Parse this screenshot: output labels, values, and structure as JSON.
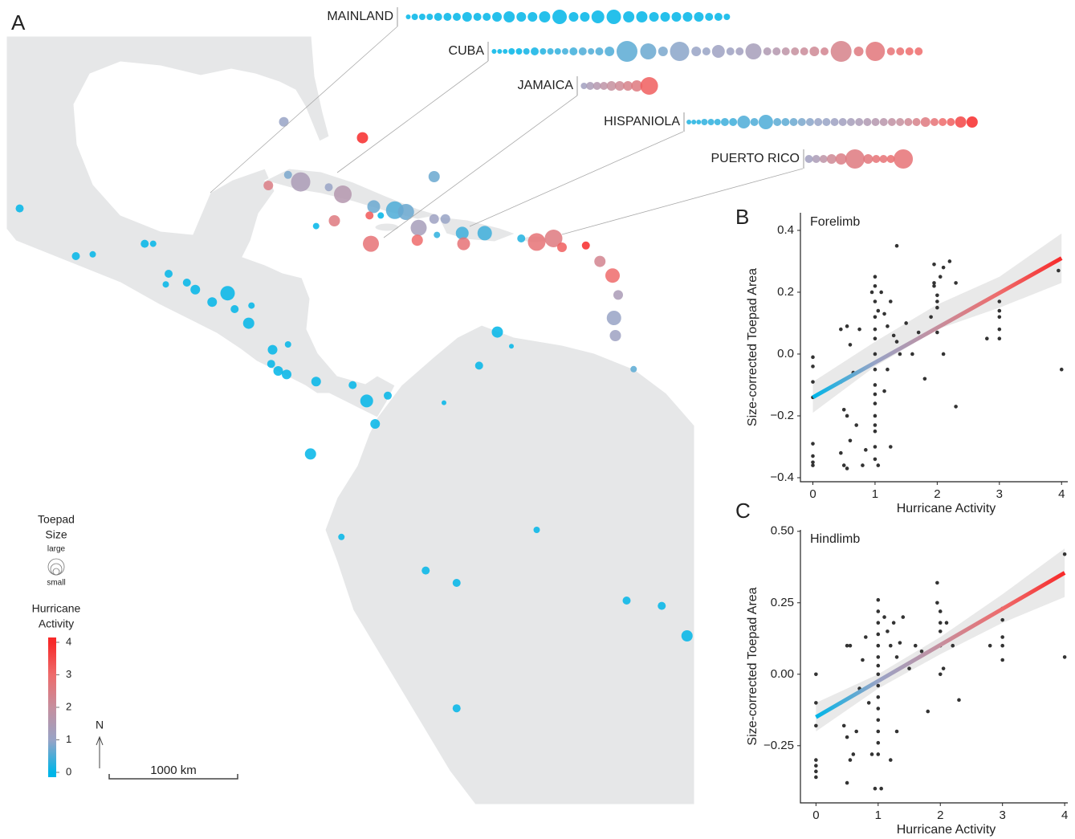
{
  "chart_data": [
    {
      "type": "map",
      "panel": "A",
      "lon": [
        -105.0,
        -101.0,
        -99.8,
        -96.1,
        -95.5,
        -94.4,
        -94.6,
        -93.1,
        -92.5,
        -91.3,
        -90.2,
        -89.7,
        -88.7,
        -88.5,
        -87.0,
        -85.9,
        -87.1,
        -86.6,
        -86.0,
        -83.9,
        -81.3,
        -80.3,
        -78.8,
        -79.7,
        -84.3,
        -74.8,
        -72.3,
        -71.0,
        -70.0,
        -82.1,
        -76.1,
        -73.9,
        -68.2,
        -61.8,
        -59.3,
        -57.5,
        -73.9,
        -83.9,
        -79.3,
        -75.3,
        -61.3,
        -86.2,
        -80.6,
        -87.3,
        -85.0,
        -85.9,
        -82.0,
        -83.0,
        -82.6,
        -80.0,
        -79.8,
        -78.3,
        -77.5,
        -76.6,
        -75.5,
        -75.5,
        -74.7,
        -73.5,
        -71.9,
        -73.4,
        -76.7,
        -69.3,
        -68.2,
        -67.0,
        -66.4,
        -64.7,
        -63.7,
        -62.8,
        -62.4,
        -62.7,
        -62.6,
        -80.1
      ],
      "lat": [
        17.7,
        15.0,
        15.1,
        15.7,
        15.7,
        14.0,
        13.4,
        13.5,
        13.1,
        12.4,
        12.9,
        12.0,
        11.2,
        12.2,
        9.7,
        10.0,
        8.9,
        8.5,
        8.3,
        7.9,
        7.7,
        6.8,
        7.1,
        5.5,
        3.8,
        6.7,
        8.8,
        10.7,
        9.9,
        -0.9,
        -2.8,
        -3.5,
        -0.5,
        -4.5,
        -4.8,
        -6.5,
        -10.6,
        16.7,
        17.3,
        16.2,
        8.6,
        22.6,
        21.7,
        19.0,
        19.2,
        19.6,
        18.5,
        18.9,
        17.0,
        15.7,
        17.8,
        17.6,
        17.5,
        16.6,
        19.5,
        17.1,
        17.1,
        16.3,
        16.3,
        15.7,
        15.9,
        16.0,
        15.8,
        16.0,
        15.5,
        15.6,
        14.7,
        13.9,
        12.8,
        11.5,
        10.5,
        17.3
      ],
      "activity": [
        0,
        0,
        0,
        0,
        0,
        0,
        0,
        0,
        0,
        0,
        0,
        0,
        0,
        0,
        0,
        0,
        0,
        0,
        0,
        0,
        0,
        0,
        0,
        0,
        0,
        0,
        0,
        0,
        0,
        0,
        0,
        0,
        0,
        0,
        0,
        0,
        0,
        0,
        0,
        0.3,
        0.6,
        1.0,
        4.0,
        2.5,
        1.4,
        0.8,
        1.6,
        1.0,
        2.6,
        2.8,
        0.7,
        0.5,
        0.7,
        1.3,
        0.7,
        1.1,
        1.0,
        0.4,
        0.4,
        2.8,
        3.0,
        0.2,
        2.8,
        2.6,
        3.2,
        4.0,
        2.3,
        3.0,
        1.4,
        1.0,
        1.1,
        3.3
      ],
      "toepad": [
        5,
        5,
        4,
        5,
        4,
        5,
        4,
        5,
        6,
        6,
        9,
        5,
        7,
        4,
        6,
        4,
        5,
        6,
        6,
        6,
        5,
        8,
        5,
        6,
        7,
        3,
        5,
        7,
        3,
        4,
        5,
        5,
        4,
        5,
        5,
        7,
        5,
        4,
        4,
        4,
        4,
        6,
        7,
        6,
        12,
        5,
        11,
        5,
        7,
        10,
        8,
        11,
        10,
        10,
        7,
        6,
        6,
        8,
        9,
        8,
        7,
        5,
        11,
        11,
        6,
        5,
        7,
        9,
        6,
        9,
        7,
        5
      ],
      "islands": [
        {
          "name": "MAINLAND",
          "activity": [
            0,
            0,
            0,
            0,
            0,
            0,
            0,
            0,
            0,
            0,
            0,
            0,
            0,
            0,
            0,
            0,
            0,
            0,
            0,
            0,
            0,
            0,
            0,
            0,
            0,
            0,
            0,
            0,
            0,
            0
          ],
          "toepad": [
            3,
            4,
            4,
            4,
            5,
            5,
            5,
            6,
            5,
            5,
            6,
            7,
            6,
            6,
            7,
            9,
            6,
            6,
            8,
            9,
            7,
            7,
            6,
            6,
            6,
            6,
            6,
            5,
            5,
            4
          ]
        },
        {
          "name": "CUBA",
          "activity": [
            0,
            0,
            0,
            0,
            0,
            0.1,
            0.1,
            0.2,
            0.3,
            0.3,
            0.4,
            0.4,
            0.5,
            0.5,
            0.5,
            0.5,
            0.6,
            0.7,
            0.8,
            0.9,
            1.0,
            1.0,
            1.1,
            1.1,
            1.2,
            1.3,
            1.5,
            1.6,
            1.8,
            2.0,
            2.1,
            2.2,
            2.3,
            2.4,
            2.6,
            2.7,
            2.8,
            2.9,
            3.0,
            3.0
          ],
          "toepad": [
            3,
            3,
            3,
            4,
            4,
            4,
            5,
            4,
            4,
            4,
            4,
            5,
            5,
            4,
            5,
            6,
            13,
            10,
            6,
            12,
            6,
            5,
            8,
            5,
            5,
            10,
            5,
            5,
            5,
            5,
            5,
            6,
            5,
            13,
            6,
            12,
            5,
            5,
            5,
            5
          ]
        },
        {
          "name": "JAMAICA",
          "activity": [
            1.2,
            1.4,
            1.6,
            1.8,
            2.0,
            2.2,
            2.4,
            2.6,
            3.2
          ],
          "toepad": [
            4,
            5,
            5,
            5,
            6,
            6,
            6,
            7,
            11
          ]
        },
        {
          "name": "HISPANIOLA",
          "activity": [
            0.2,
            0.2,
            0.2,
            0.3,
            0.3,
            0.3,
            0.4,
            0.4,
            0.5,
            0.5,
            0.5,
            0.6,
            0.6,
            0.7,
            0.8,
            0.9,
            1.0,
            1.0,
            1.1,
            1.2,
            1.3,
            1.4,
            1.5,
            1.6,
            1.7,
            1.9,
            2.0,
            2.2,
            2.4,
            2.6,
            2.8,
            3.0,
            3.2,
            3.6,
            4.0
          ],
          "toepad": [
            3,
            3,
            3,
            4,
            4,
            4,
            5,
            5,
            8,
            5,
            9,
            5,
            5,
            5,
            5,
            5,
            5,
            5,
            5,
            5,
            5,
            5,
            5,
            5,
            5,
            5,
            5,
            5,
            5,
            6,
            5,
            5,
            5,
            7,
            7
          ]
        },
        {
          "name": "PUERTO RICO",
          "activity": [
            1.2,
            1.4,
            1.8,
            2.2,
            2.5,
            2.6,
            2.7,
            2.8,
            2.8,
            2.9,
            2.8
          ],
          "toepad": [
            5,
            5,
            5,
            6,
            7,
            12,
            6,
            5,
            5,
            5,
            12
          ]
        }
      ],
      "size_legend": {
        "title": [
          "Toepad",
          "Size"
        ],
        "large": "large",
        "small": "small"
      },
      "colorbar": {
        "title": [
          "Hurricane",
          "Activity"
        ],
        "ticks": [
          0,
          1,
          2,
          3,
          4
        ],
        "colors": [
          "#00b5e8",
          "#98a3c6",
          "#c68f9e",
          "#ee6b6b",
          "#f72a2a"
        ]
      },
      "north": "N",
      "scalebar": "1000 km"
    },
    {
      "type": "scatter",
      "panel": "B",
      "title": "Forelimb",
      "x_label": "Hurricane Activity",
      "y_label": "Size-corrected Toepad Area",
      "x": [
        0,
        0,
        0,
        0,
        0,
        0,
        0,
        0,
        0.45,
        0.5,
        0.55,
        0.6,
        0.5,
        0.55,
        0.7,
        0.45,
        0.55,
        0.6,
        0.75,
        0.8,
        0.85,
        0.65,
        0.45,
        1,
        1,
        1,
        1,
        1,
        1,
        1,
        1,
        1,
        1,
        1,
        1,
        1,
        1,
        1,
        1,
        0.95,
        1.05,
        1.1,
        1.15,
        1.2,
        1.25,
        1.3,
        1.35,
        1.35,
        1.4,
        1.2,
        1.25,
        1.15,
        1.5,
        1.6,
        1.7,
        1.05,
        1.95,
        1.95,
        1.95,
        2,
        2,
        2,
        2.05,
        2.1,
        2.2,
        2.3,
        2.3,
        1.8,
        2,
        2.1,
        1.9,
        3,
        3,
        3,
        3,
        3,
        2.8,
        3.95,
        4
      ],
      "y": [
        -0.01,
        -0.04,
        -0.14,
        -0.29,
        -0.33,
        -0.35,
        -0.36,
        -0.09,
        -0.32,
        -0.36,
        -0.37,
        -0.28,
        -0.18,
        -0.2,
        -0.23,
        0.08,
        0.09,
        0.03,
        0.08,
        -0.36,
        -0.31,
        -0.06,
        -0.09,
        0.25,
        0.22,
        0.17,
        0.12,
        0.08,
        0.05,
        0.0,
        -0.05,
        -0.1,
        -0.13,
        -0.16,
        -0.2,
        -0.23,
        -0.25,
        -0.3,
        -0.34,
        0.2,
        0.14,
        0.2,
        0.13,
        0.09,
        0.17,
        0.06,
        0.35,
        0.04,
        0.0,
        -0.05,
        -0.3,
        -0.12,
        0.1,
        0.0,
        0.07,
        -0.36,
        0.29,
        0.23,
        0.22,
        0.19,
        0.17,
        0.15,
        0.25,
        0.28,
        0.3,
        0.23,
        -0.17,
        -0.08,
        0.07,
        0.0,
        0.12,
        0.17,
        0.14,
        0.12,
        0.08,
        0.05,
        0.05,
        0.27,
        -0.05
      ],
      "fit": {
        "x": [
          0,
          4
        ],
        "y": [
          -0.14,
          0.31
        ]
      },
      "band": {
        "x": [
          0,
          1,
          2,
          3,
          4
        ],
        "lower": [
          -0.19,
          -0.04,
          0.08,
          0.15,
          0.23
        ],
        "upper": [
          -0.09,
          0.04,
          0.16,
          0.25,
          0.39
        ]
      },
      "xlim": [
        -0.2,
        4.1
      ],
      "ylim": [
        -0.413,
        0.457
      ],
      "xticks": [
        0,
        1,
        2,
        3,
        4
      ],
      "yticks": [
        {
          "value": -0.4,
          "label": "−0.4"
        },
        {
          "value": -0.2,
          "label": "−0.2"
        },
        {
          "value": 0,
          "label": "0.0"
        },
        0.2,
        0.4
      ]
    },
    {
      "type": "scatter",
      "panel": "C",
      "title": "Hindlimb",
      "x_label": "Hurricane Activity",
      "y_label": "Size-corrected Toepad Area",
      "x": [
        0,
        0,
        0,
        0,
        0,
        0,
        0,
        0.4,
        0.45,
        0.5,
        0.5,
        0.55,
        0.6,
        0.55,
        0.5,
        0.7,
        0.75,
        0.65,
        0.8,
        0.85,
        0.9,
        0.95,
        1,
        1,
        1,
        1,
        1,
        1,
        1,
        1,
        1,
        1,
        1,
        1,
        1,
        1,
        1,
        1.1,
        1.15,
        1.2,
        1.25,
        1.3,
        1.35,
        1.4,
        1.5,
        1.3,
        1.2,
        1.05,
        1.6,
        1.7,
        1.8,
        1.95,
        1.95,
        2,
        2,
        2,
        2,
        2.05,
        2.1,
        2.2,
        2.3,
        2,
        3,
        3,
        3,
        3,
        3,
        2.8,
        4,
        4
      ],
      "y": [
        0.0,
        -0.1,
        -0.18,
        -0.3,
        -0.32,
        -0.34,
        -0.36,
        -0.1,
        -0.18,
        -0.22,
        0.1,
        0.1,
        -0.28,
        -0.3,
        -0.38,
        -0.05,
        0.05,
        -0.2,
        0.13,
        -0.1,
        -0.28,
        -0.4,
        0.26,
        0.22,
        0.18,
        0.14,
        0.1,
        0.06,
        0.03,
        0.0,
        -0.04,
        -0.08,
        -0.12,
        -0.16,
        -0.2,
        -0.24,
        -0.28,
        0.2,
        0.15,
        0.1,
        0.18,
        0.06,
        0.11,
        0.2,
        0.02,
        -0.2,
        -0.3,
        -0.4,
        0.1,
        0.08,
        -0.13,
        0.32,
        0.25,
        0.22,
        0.18,
        0.15,
        0.1,
        0.02,
        0.18,
        0.1,
        -0.09,
        0.0,
        0.23,
        0.19,
        0.13,
        0.1,
        0.05,
        0.1,
        0.42,
        0.06
      ],
      "fit": {
        "x": [
          0,
          4
        ],
        "y": [
          -0.15,
          0.355
        ]
      },
      "band": {
        "x": [
          0,
          1,
          2,
          3,
          4
        ],
        "lower": [
          -0.2,
          -0.05,
          0.07,
          0.18,
          0.27
        ],
        "upper": [
          -0.1,
          0.0,
          0.13,
          0.28,
          0.44
        ]
      },
      "xlim": [
        -0.25,
        4.05
      ],
      "ylim": [
        -0.45,
        0.505
      ],
      "xticks": [
        0,
        1,
        2,
        3,
        4
      ],
      "yticks": [
        {
          "value": -0.25,
          "label": "−0.25"
        },
        {
          "value": 0,
          "label": "0.00"
        },
        {
          "value": 0.25,
          "label": "0.25"
        },
        {
          "value": 0.5,
          "label": "0.50"
        }
      ]
    }
  ]
}
